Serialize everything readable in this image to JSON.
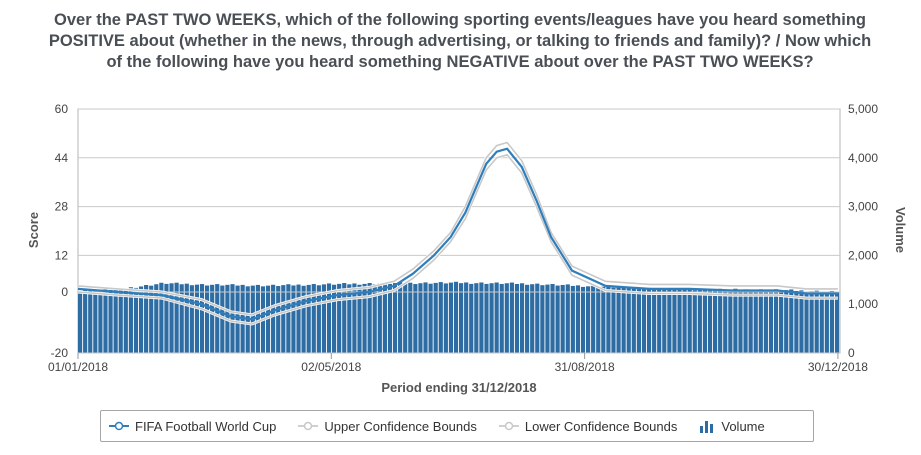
{
  "chart_data": {
    "type": "line",
    "title": "Over the PAST TWO WEEKS, which of the following sporting events/leagues have you heard something POSITIVE about (whether in the news, through advertising, or talking to friends and family)? / Now which of the following have you heard something NEGATIVE about over the PAST TWO WEEKS?",
    "xlabel": "Period ending 31/12/2018",
    "ylabel": "Score",
    "y2label": "Volume",
    "x_tick_labels": [
      "01/01/2018",
      "02/05/2018",
      "31/08/2018",
      "30/12/2018"
    ],
    "y_ticks": [
      60,
      44,
      28,
      12,
      0,
      -20
    ],
    "y_tick_labels": [
      "60",
      "44",
      "28",
      "12",
      "0",
      "-20"
    ],
    "ylim": [
      -20,
      60
    ],
    "y2_ticks": [
      5000,
      4000,
      3000,
      2000,
      1000,
      0
    ],
    "y2_tick_labels": [
      "5,000",
      "4,000",
      "3,000",
      "2,000",
      "1,000",
      "0"
    ],
    "y2lim": [
      0,
      5000
    ],
    "xlim": [
      "2018-01-01",
      "2018-12-31"
    ],
    "grid": true,
    "legend_position": "bottom",
    "series": [
      {
        "name": "FIFA Football World Cup",
        "color": "#2f7ebc",
        "x": [
          "2018-01-01",
          "2018-01-20",
          "2018-02-10",
          "2018-03-01",
          "2018-03-15",
          "2018-03-25",
          "2018-04-05",
          "2018-04-20",
          "2018-05-05",
          "2018-05-20",
          "2018-06-01",
          "2018-06-10",
          "2018-06-20",
          "2018-06-28",
          "2018-07-05",
          "2018-07-10",
          "2018-07-15",
          "2018-07-20",
          "2018-07-25",
          "2018-08-01",
          "2018-08-08",
          "2018-08-15",
          "2018-08-25",
          "2018-09-10",
          "2018-10-01",
          "2018-10-20",
          "2018-11-10",
          "2018-12-01",
          "2018-12-15",
          "2018-12-30"
        ],
        "values": [
          1,
          0,
          -1,
          -4,
          -8,
          -9,
          -6,
          -3,
          -1,
          0,
          2,
          6,
          12,
          18,
          26,
          34,
          42,
          46,
          47,
          41,
          30,
          18,
          7,
          2,
          1,
          1,
          0.5,
          0.5,
          -0.5,
          -0.5
        ]
      },
      {
        "name": "Upper Confidence Bounds",
        "color": "#c8c8c8",
        "x": [
          "2018-01-01",
          "2018-01-20",
          "2018-02-10",
          "2018-03-01",
          "2018-03-15",
          "2018-03-25",
          "2018-04-05",
          "2018-04-20",
          "2018-05-05",
          "2018-05-20",
          "2018-06-01",
          "2018-06-10",
          "2018-06-20",
          "2018-06-28",
          "2018-07-05",
          "2018-07-10",
          "2018-07-15",
          "2018-07-20",
          "2018-07-25",
          "2018-08-01",
          "2018-08-08",
          "2018-08-15",
          "2018-08-25",
          "2018-09-10",
          "2018-10-01",
          "2018-10-20",
          "2018-11-10",
          "2018-12-01",
          "2018-12-15",
          "2018-12-30"
        ],
        "values": [
          2,
          1,
          0,
          -2.5,
          -6.5,
          -7.5,
          -4.5,
          -1.5,
          0.5,
          1.5,
          3.5,
          7.5,
          13.5,
          19.5,
          28,
          36,
          44,
          48,
          49,
          43,
          32,
          19.5,
          8.5,
          3.5,
          2.5,
          2.5,
          2,
          2,
          1,
          1
        ]
      },
      {
        "name": "Lower Confidence Bounds",
        "color": "#c8c8c8",
        "x": [
          "2018-01-01",
          "2018-01-20",
          "2018-02-10",
          "2018-03-01",
          "2018-03-15",
          "2018-03-25",
          "2018-04-05",
          "2018-04-20",
          "2018-05-05",
          "2018-05-20",
          "2018-06-01",
          "2018-06-10",
          "2018-06-20",
          "2018-06-28",
          "2018-07-05",
          "2018-07-10",
          "2018-07-15",
          "2018-07-20",
          "2018-07-25",
          "2018-08-01",
          "2018-08-08",
          "2018-08-15",
          "2018-08-25",
          "2018-09-10",
          "2018-10-01",
          "2018-10-20",
          "2018-11-10",
          "2018-12-01",
          "2018-12-15",
          "2018-12-30"
        ],
        "values": [
          0,
          -1,
          -2,
          -5.5,
          -9.5,
          -10.5,
          -7.5,
          -4.5,
          -2.5,
          -1.5,
          0.5,
          4.5,
          10.5,
          16.5,
          24,
          32,
          40,
          44,
          45,
          39,
          28,
          16.5,
          5.5,
          0.5,
          -0.5,
          -0.5,
          -1,
          -1,
          -2,
          -2
        ]
      },
      {
        "name": "Volume",
        "type": "bar",
        "axis": "right",
        "color": "#2e6da4",
        "x": [
          "2018-01-01",
          "2018-01-20",
          "2018-02-10",
          "2018-03-01",
          "2018-04-01",
          "2018-05-01",
          "2018-06-01",
          "2018-07-01",
          "2018-08-01",
          "2018-09-01",
          "2018-10-01",
          "2018-11-01",
          "2018-12-01",
          "2018-12-30"
        ],
        "values": [
          1290,
          1310,
          1430,
          1400,
          1380,
          1410,
          1430,
          1440,
          1420,
          1370,
          1320,
          1300,
          1290,
          1250
        ]
      }
    ]
  },
  "legend": {
    "items": [
      {
        "label": "FIFA Football World Cup",
        "icon": "line-circle-marker-icon",
        "color": "#2f7ebc"
      },
      {
        "label": "Upper Confidence Bounds",
        "icon": "line-circle-marker-icon",
        "color": "#c8c8c8"
      },
      {
        "label": "Lower Confidence Bounds",
        "icon": "line-circle-marker-icon",
        "color": "#c8c8c8"
      },
      {
        "label": "Volume",
        "icon": "bar-chart-icon",
        "color": "#2e6da4"
      }
    ]
  }
}
